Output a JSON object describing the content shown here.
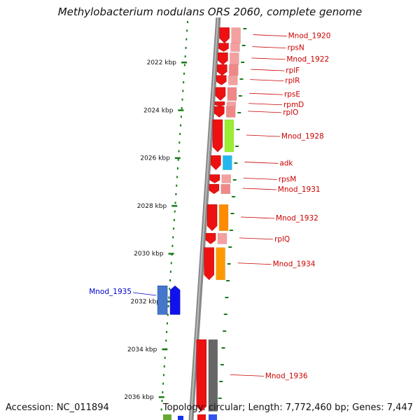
{
  "title": "Methylobacterium nodulans ORS 2060, complete genome",
  "accession": "Accession: NC_011894",
  "topology": "Topology: circular; Length: 7,772,460 bp; Genes: 7,447",
  "colors": {
    "gene_label": "#cc0000",
    "highlight_label": "#0000cc",
    "tick": "#1a7a1a",
    "axis": "#888888"
  },
  "kbp_ticks": [
    {
      "label": "2022 kbp",
      "kbp": 2022
    },
    {
      "label": "2024 kbp",
      "kbp": 2024
    },
    {
      "label": "2026 kbp",
      "kbp": 2026
    },
    {
      "label": "2028 kbp",
      "kbp": 2028
    },
    {
      "label": "2030 kbp",
      "kbp": 2030
    },
    {
      "label": "2032 kbp",
      "kbp": 2032
    },
    {
      "label": "2034 kbp",
      "kbp": 2034
    },
    {
      "label": "2036 kbp",
      "kbp": 2036
    }
  ],
  "genes": [
    {
      "name": "Mnod_1920",
      "kbp_start": 2020.55,
      "kbp_end": 2021.2,
      "color": "#f4a0a0"
    },
    {
      "name": "rpsN",
      "kbp_start": 2021.2,
      "kbp_end": 2021.55,
      "color": "#f4a0a0"
    },
    {
      "name": "Mnod_1922",
      "kbp_start": 2021.6,
      "kbp_end": 2022.1,
      "color": "#f4a0a0"
    },
    {
      "name": "rplF",
      "kbp_start": 2022.1,
      "kbp_end": 2022.55,
      "color": "#f08888"
    },
    {
      "name": "rplR",
      "kbp_start": 2022.55,
      "kbp_end": 2022.95,
      "color": "#f4a0a0"
    },
    {
      "name": "rpsE",
      "kbp_start": 2023.05,
      "kbp_end": 2023.6,
      "color": "#f08888"
    },
    {
      "name": "rpmD",
      "kbp_start": 2023.65,
      "kbp_end": 2023.85,
      "color": "#f4a0a0"
    },
    {
      "name": "rplO",
      "kbp_start": 2023.85,
      "kbp_end": 2024.3,
      "color": "#f08888"
    },
    {
      "name": "Mnod_1928",
      "kbp_start": 2024.4,
      "kbp_end": 2025.75,
      "color": "#99ee33"
    },
    {
      "name": "adk",
      "kbp_start": 2025.9,
      "kbp_end": 2026.5,
      "color": "#22b8ee"
    },
    {
      "name": "rpsM",
      "kbp_start": 2026.7,
      "kbp_end": 2027.05,
      "color": "#f4a0a0"
    },
    {
      "name": "Mnod_1931",
      "kbp_start": 2027.1,
      "kbp_end": 2027.5,
      "color": "#f08888"
    },
    {
      "name": "Mnod_1932",
      "kbp_start": 2027.95,
      "kbp_end": 2029.05,
      "color": "#ff8c00"
    },
    {
      "name": "rplQ",
      "kbp_start": 2029.15,
      "kbp_end": 2029.6,
      "color": "#f4a0a0"
    },
    {
      "name": "Mnod_1934",
      "kbp_start": 2029.75,
      "kbp_end": 2031.1,
      "color": "#ff9900"
    },
    {
      "name": "Mnod_1936",
      "kbp_start": 2033.6,
      "kbp_end": 2036.6,
      "color": "#666666"
    }
  ],
  "highlight_gene": {
    "name": "Mnod_1935",
    "kbp_start": 2031.35,
    "kbp_end": 2032.55
  }
}
